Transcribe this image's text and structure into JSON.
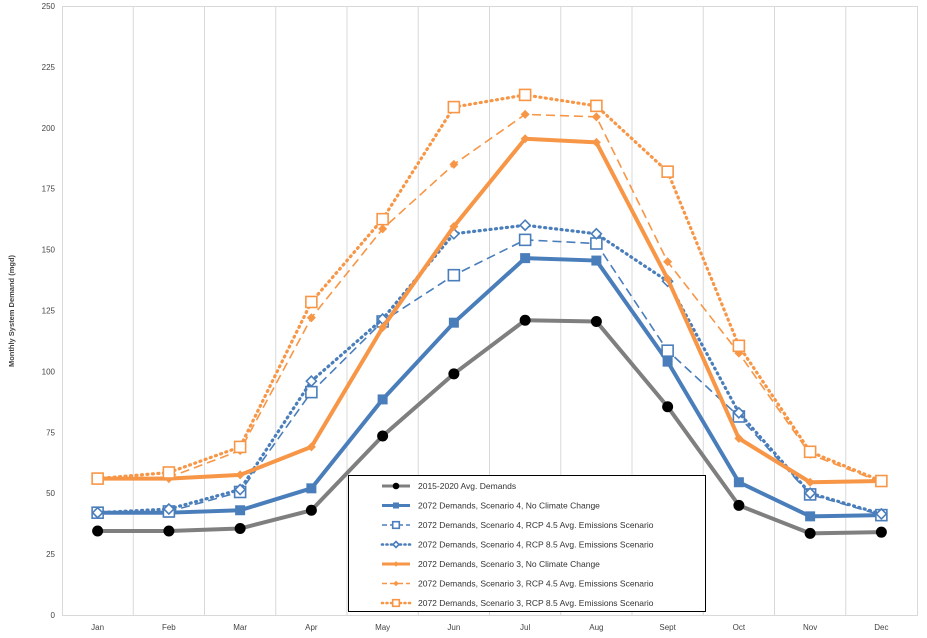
{
  "chart_data": {
    "type": "line",
    "title": "",
    "xlabel": "",
    "ylabel": "Monthly System Demand (mgd)",
    "ylim": [
      0,
      250
    ],
    "yticks": [
      "0",
      "25",
      "50",
      "75",
      "100",
      "125",
      "150",
      "175",
      "200",
      "225",
      "250"
    ],
    "categories": [
      "Jan",
      "Feb",
      "Mar",
      "Apr",
      "May",
      "Jun",
      "Jul",
      "Aug",
      "Sept",
      "Oct",
      "Nov",
      "Dec"
    ],
    "grid": "vertical",
    "legend_position": "bottom-center",
    "series": [
      {
        "name": "2015-2020 Avg. Demands",
        "color": "#7f7f7f",
        "marker_color": "#000000",
        "style": "solid",
        "marker": "circle",
        "values": [
          34.5,
          34.5,
          35.5,
          43,
          73.5,
          99,
          121,
          120.5,
          85.5,
          45,
          33.5,
          34
        ]
      },
      {
        "name": "2072 Demands, Scenario 4, No Climate Change",
        "color": "#4a7ebb",
        "style": "solid",
        "marker": "filled-square",
        "values": [
          42,
          42,
          43,
          52,
          88.5,
          120,
          146.5,
          145.5,
          104,
          54.5,
          40.5,
          41
        ]
      },
      {
        "name": "2072 Demands, Scenario 4, RCP 4.5 Avg. Emissions Scenario",
        "color": "#4a7ebb",
        "style": "dashed",
        "marker": "open-square",
        "values": [
          42,
          42.5,
          50.5,
          91.5,
          120.5,
          139.5,
          154,
          152.5,
          108.5,
          81.5,
          49.5,
          41
        ]
      },
      {
        "name": "2072 Demands, Scenario 4, RCP 8.5 Avg. Emissions Scenario",
        "color": "#4a7ebb",
        "style": "dotted",
        "marker": "open-diamond",
        "values": [
          42,
          43.5,
          51.5,
          96,
          121.5,
          156.5,
          160,
          156.5,
          137,
          83,
          50,
          41.5
        ]
      },
      {
        "name": "2072 Demands, Scenario 3, No Climate Change",
        "color": "#f79646",
        "style": "solid",
        "marker": "filled-diamond",
        "values": [
          56,
          56,
          57.5,
          69,
          118,
          159.5,
          195.5,
          194,
          138,
          72.5,
          54.5,
          55
        ]
      },
      {
        "name": "2072 Demands, Scenario 3, RCP 4.5 Avg. Emissions Scenario",
        "color": "#f79646",
        "style": "dashed",
        "marker": "filled-diamond",
        "values": [
          56,
          56.5,
          67.5,
          122,
          158.5,
          185,
          205.5,
          204.5,
          145,
          107.5,
          66,
          54.5
        ]
      },
      {
        "name": "2072 Demands, Scenario 3, RCP 8.5 Avg. Emissions Scenario",
        "color": "#f79646",
        "style": "dotted",
        "marker": "open-square",
        "values": [
          56,
          58.5,
          69,
          128.5,
          162.5,
          208.5,
          213.5,
          209,
          182,
          110.5,
          67,
          55
        ]
      }
    ]
  }
}
